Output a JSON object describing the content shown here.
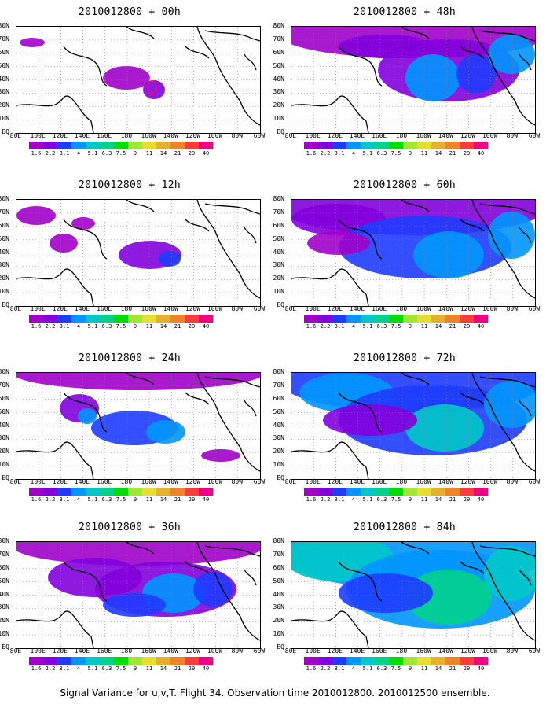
{
  "caption": "Signal Variance for u,v,T. Flight 34. Observation time 2010012800. 2010012500 ensemble.",
  "x_axis_labels": [
    "80E",
    "100E",
    "120E",
    "140E",
    "160E",
    "180",
    "160W",
    "140W",
    "120W",
    "100W",
    "80W",
    "60W"
  ],
  "y_axis_labels": [
    "80N",
    "70N",
    "60N",
    "50N",
    "40N",
    "30N",
    "20N",
    "10N",
    "EQ"
  ],
  "colorbar": {
    "labels": [
      "1.6",
      "2.2",
      "3.1",
      "4",
      "5.1",
      "6.3",
      "7.5",
      "9",
      "11",
      "14",
      "21",
      "29",
      "40"
    ],
    "colors": [
      "#a000c8",
      "#8200dc",
      "#1e3cff",
      "#0096ff",
      "#00c8c8",
      "#00d28c",
      "#00dc00",
      "#a0e632",
      "#e6dc32",
      "#e6af2d",
      "#f08228",
      "#fa3c3c",
      "#f00082"
    ]
  },
  "panels": [
    {
      "title": "2010012800 + 00h",
      "intensity": 0
    },
    {
      "title": "2010012800 + 12h",
      "intensity": 1
    },
    {
      "title": "2010012800 + 24h",
      "intensity": 2
    },
    {
      "title": "2010012800 + 36h",
      "intensity": 3
    },
    {
      "title": "2010012800 + 48h",
      "intensity": 4
    },
    {
      "title": "2010012800 + 60h",
      "intensity": 5
    },
    {
      "title": "2010012800 + 72h",
      "intensity": 6
    },
    {
      "title": "2010012800 + 84h",
      "intensity": 7
    }
  ]
}
